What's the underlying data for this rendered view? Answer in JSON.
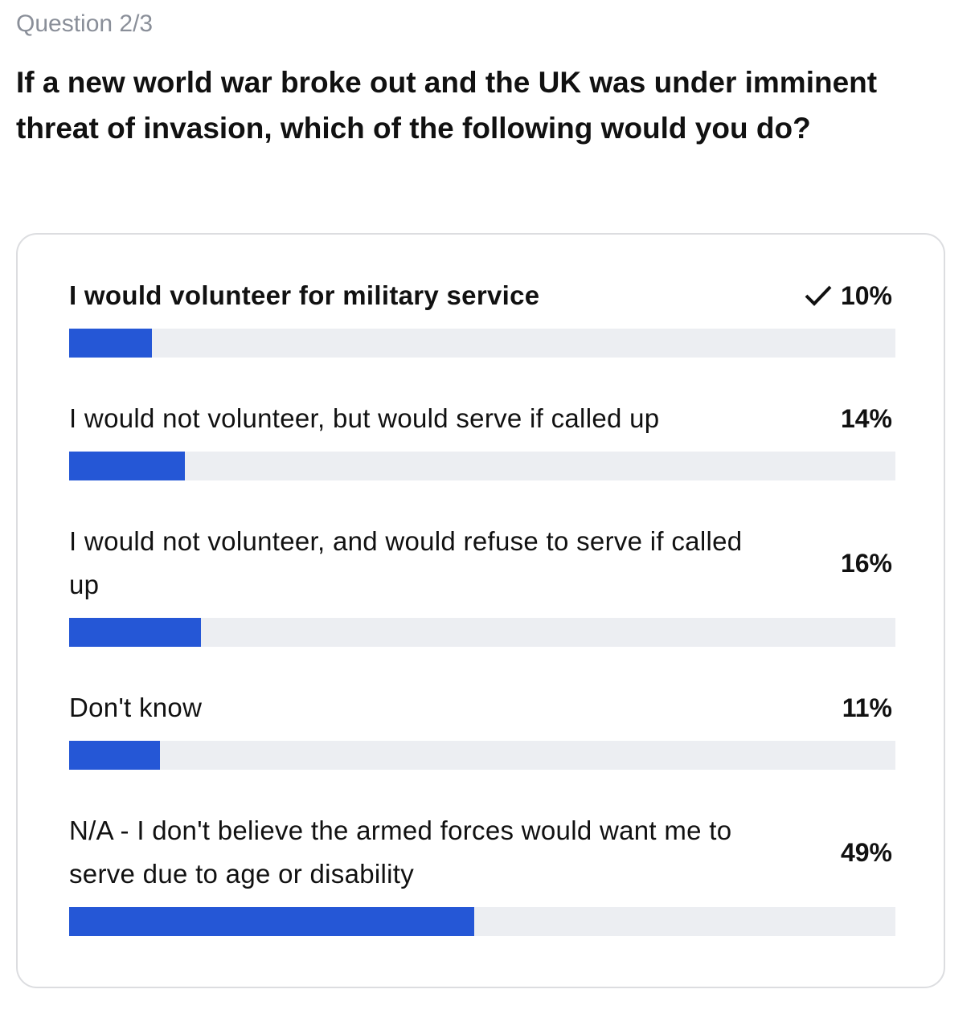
{
  "header": {
    "question_number": "Question 2/3",
    "question": "If a new world war broke out and the UK was under imminent threat of invasion, which of the following would you do?"
  },
  "poll": {
    "xlim": [
      0,
      100
    ],
    "selected": 0,
    "bar_color": "#2557d6",
    "track_color": "#eceef2",
    "options": [
      {
        "label": "I would volunteer for military service",
        "value": 10,
        "value_label": "10%"
      },
      {
        "label": "I would not volunteer, but would serve if called up",
        "value": 14,
        "value_label": "14%"
      },
      {
        "label": "I would not volunteer, and would refuse to serve if called up",
        "value": 16,
        "value_label": "16%"
      },
      {
        "label": "Don't know",
        "value": 11,
        "value_label": "11%"
      },
      {
        "label": "N/A - I don't believe the armed forces would want me to serve due to age or disability",
        "value": 49,
        "value_label": "49%"
      }
    ]
  }
}
